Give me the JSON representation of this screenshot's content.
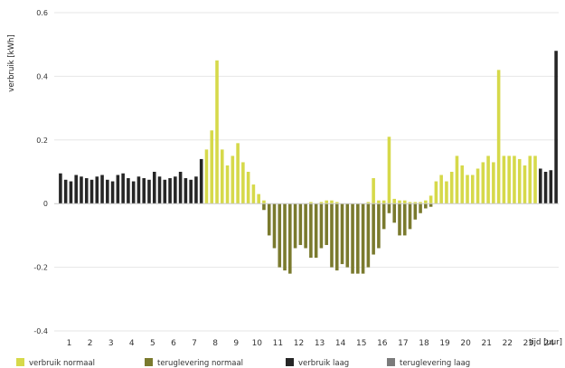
{
  "chart_data": {
    "type": "bar",
    "ylabel": "verbruik [kWh]",
    "xlabel": "tijd [uur]",
    "ylim": [
      -0.4,
      0.6
    ],
    "yticks": [
      0.6,
      0.4,
      0.2,
      0,
      -0.2,
      -0.4
    ],
    "ytick_labels": [
      "0.6",
      "0.4",
      "0.2",
      "0",
      "-0.2",
      "-0.4"
    ],
    "x_range": [
      0,
      24
    ],
    "xticks": [
      "1",
      "2",
      "3",
      "4",
      "5",
      "6",
      "7",
      "8",
      "9",
      "10",
      "11",
      "12",
      "13",
      "14",
      "15",
      "16",
      "17",
      "18",
      "19",
      "20",
      "21",
      "22",
      "23",
      "24"
    ],
    "grid": true,
    "legend_position": "bottom",
    "series": [
      {
        "name": "verbruik normaal",
        "color": "#d6d94a",
        "x": [
          7.0,
          7.25,
          7.5,
          7.75,
          8.0,
          8.25,
          8.5,
          8.75,
          9.0,
          9.25,
          9.5,
          9.75,
          10.0,
          10.25,
          10.5,
          10.75,
          11.0,
          11.25,
          11.5,
          11.75,
          12.0,
          12.25,
          12.5,
          12.75,
          13.0,
          13.25,
          13.5,
          13.75,
          14.0,
          14.25,
          14.5,
          14.75,
          15.0,
          15.25,
          15.5,
          15.75,
          16.0,
          16.25,
          16.5,
          16.75,
          17.0,
          17.25,
          17.5,
          17.75,
          18.0,
          18.25,
          18.5,
          18.75,
          19.0,
          19.25,
          19.5,
          19.75,
          20.0,
          20.25,
          20.5,
          20.75,
          21.0,
          21.25,
          21.5,
          21.75,
          22.0,
          22.25,
          22.5,
          22.75
        ],
        "values": [
          0.17,
          0.23,
          0.45,
          0.17,
          0.12,
          0.15,
          0.19,
          0.13,
          0.1,
          0.06,
          0.03,
          0.01,
          0,
          0,
          0,
          0,
          0,
          0,
          0,
          0,
          0.005,
          0,
          0.005,
          0.01,
          0.01,
          0.005,
          0,
          0,
          0,
          0,
          0,
          0.005,
          0.08,
          0.01,
          0.01,
          0.21,
          0.015,
          0.01,
          0.01,
          0.005,
          0.005,
          0.005,
          0.01,
          0.025,
          0.07,
          0.09,
          0.07,
          0.1,
          0.15,
          0.12,
          0.09,
          0.09,
          0.11,
          0.13,
          0.15,
          0.13,
          0.42,
          0.15,
          0.15,
          0.15,
          0.14,
          0.12,
          0.15,
          0.15
        ]
      },
      {
        "name": "teruglevering normaal",
        "color": "#7a7a2e",
        "x": [
          9.75,
          10.0,
          10.25,
          10.5,
          10.75,
          11.0,
          11.25,
          11.5,
          11.75,
          12.0,
          12.25,
          12.5,
          12.75,
          13.0,
          13.25,
          13.5,
          13.75,
          14.0,
          14.25,
          14.5,
          14.75,
          15.0,
          15.25,
          15.5,
          15.75,
          16.0,
          16.25,
          16.5,
          16.75,
          17.0,
          17.25,
          17.5,
          17.75
        ],
        "values": [
          -0.02,
          -0.1,
          -0.14,
          -0.2,
          -0.21,
          -0.22,
          -0.14,
          -0.13,
          -0.14,
          -0.17,
          -0.17,
          -0.14,
          -0.13,
          -0.2,
          -0.21,
          -0.19,
          -0.2,
          -0.22,
          -0.22,
          -0.22,
          -0.2,
          -0.16,
          -0.14,
          -0.08,
          -0.03,
          -0.06,
          -0.1,
          -0.1,
          -0.08,
          -0.05,
          -0.03,
          -0.015,
          -0.01
        ]
      },
      {
        "name": "verbruik laag",
        "color": "#262626",
        "x": [
          0.0,
          0.25,
          0.5,
          0.75,
          1.0,
          1.25,
          1.5,
          1.75,
          2.0,
          2.25,
          2.5,
          2.75,
          3.0,
          3.25,
          3.5,
          3.75,
          4.0,
          4.25,
          4.5,
          4.75,
          5.0,
          5.25,
          5.5,
          5.75,
          6.0,
          6.25,
          6.5,
          6.75,
          23.0,
          23.25,
          23.5,
          23.75
        ],
        "values": [
          0.095,
          0.075,
          0.07,
          0.09,
          0.085,
          0.08,
          0.075,
          0.085,
          0.09,
          0.075,
          0.07,
          0.09,
          0.095,
          0.08,
          0.07,
          0.085,
          0.08,
          0.075,
          0.1,
          0.085,
          0.075,
          0.08,
          0.085,
          0.1,
          0.08,
          0.075,
          0.085,
          0.14,
          0.11,
          0.1,
          0.105,
          0.48
        ]
      },
      {
        "name": "teruglevering laag",
        "color": "#7b7b7b",
        "x": [],
        "values": []
      }
    ]
  }
}
